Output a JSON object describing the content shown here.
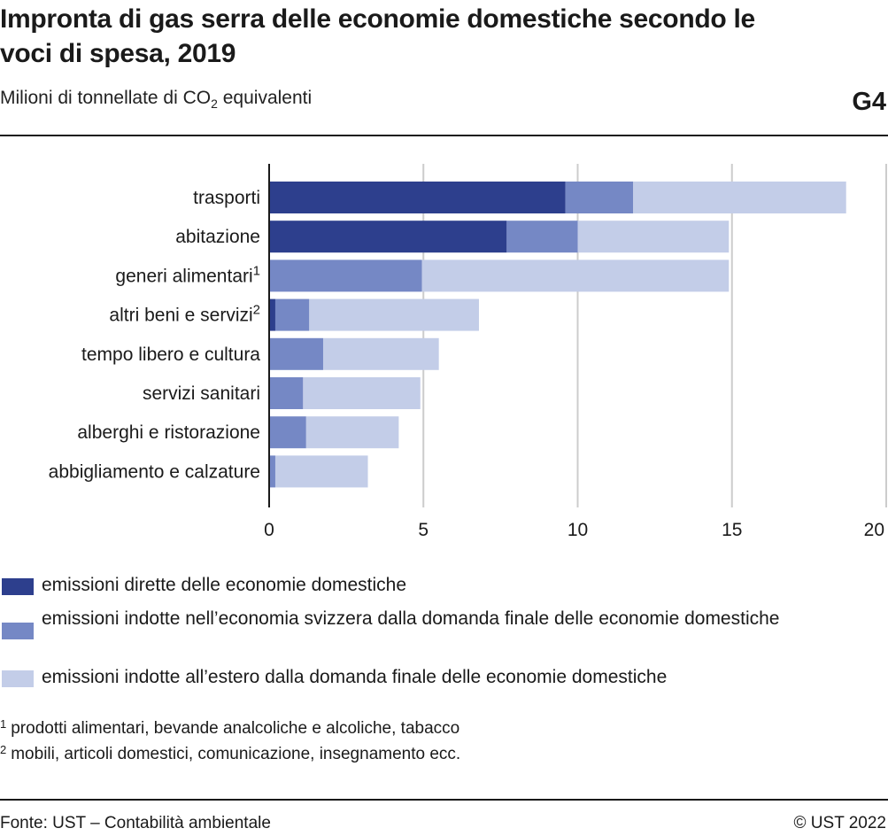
{
  "header": {
    "title": "Impronta di gas serra delle economie domestiche secondo le voci di spesa, 2019",
    "subtitle_main": "Milioni di tonnellate di CO",
    "subtitle_sub": "2",
    "subtitle_tail": " equivalenti",
    "code": "G4"
  },
  "colors": {
    "direct": "#2d3f8d",
    "swiss": "#7588c5",
    "abroad": "#c3cde8",
    "grid": "#cccccc",
    "axis": "#1a1a1a"
  },
  "chart_data": {
    "type": "bar",
    "orientation": "horizontal",
    "stacked": true,
    "categories": [
      {
        "label": "trasporti",
        "sup": ""
      },
      {
        "label": "abitazione",
        "sup": ""
      },
      {
        "label": "generi alimentari",
        "sup": "1"
      },
      {
        "label": "altri beni e servizi",
        "sup": "2"
      },
      {
        "label": "tempo libero e cultura",
        "sup": ""
      },
      {
        "label": "servizi sanitari",
        "sup": ""
      },
      {
        "label": "alberghi e ristorazione",
        "sup": ""
      },
      {
        "label": "abbigliamento e calzature",
        "sup": ""
      }
    ],
    "series": [
      {
        "name": "emissioni dirette delle economie domestiche",
        "color_key": "direct",
        "values": [
          9.6,
          7.7,
          0,
          0.2,
          0,
          0,
          0,
          0
        ]
      },
      {
        "name": "emissioni indotte nell’economia svizzera dalla domanda finale delle economie domestiche",
        "color_key": "swiss",
        "values": [
          2.2,
          2.3,
          4.95,
          1.1,
          1.75,
          1.1,
          1.2,
          0.2
        ]
      },
      {
        "name": "emissioni indotte all’estero dalla domanda finale delle economie domestiche",
        "color_key": "abroad",
        "values": [
          6.9,
          4.9,
          9.95,
          5.5,
          3.75,
          3.8,
          3.0,
          3.0
        ]
      }
    ],
    "xlim": [
      0,
      20
    ],
    "xticks": [
      0,
      5,
      10,
      15,
      20
    ],
    "grid": true,
    "legend_position": "bottom"
  },
  "notes": [
    {
      "num": "1",
      "text": "prodotti alimentari, bevande analcoliche e alcoliche, tabacco"
    },
    {
      "num": "2",
      "text": "mobili, articoli domestici, comunicazione, insegnamento ecc."
    }
  ],
  "footer": {
    "source": "Fonte: UST – Contabilità ambientale",
    "copyright": "© UST 2022"
  }
}
